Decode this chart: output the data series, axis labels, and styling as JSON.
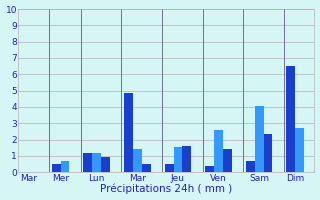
{
  "xlabel": "Précipitations 24h ( mm )",
  "ylim": [
    0,
    10
  ],
  "yticks": [
    0,
    1,
    2,
    3,
    4,
    5,
    6,
    7,
    8,
    9,
    10
  ],
  "background_color": "#d6f5f5",
  "grid_color": "#b8b0b0",
  "bar_color_dark": "#1a3fcc",
  "bar_color_light": "#3399ff",
  "day_label_color": "#2222bb",
  "xlabel_color": "#2222bb",
  "bar_groups": [
    {
      "day": "Mar",
      "bars": [
        0.0,
        0.0
      ]
    },
    {
      "day": "Mer",
      "bars": [
        0.5,
        0.7
      ]
    },
    {
      "day": "Lun",
      "bars": [
        1.2,
        1.2,
        0.9
      ]
    },
    {
      "day": "Mar",
      "bars": [
        4.85,
        1.4,
        0.5
      ]
    },
    {
      "day": "Jeu",
      "bars": [
        0.5,
        1.55,
        1.6
      ]
    },
    {
      "day": "Ven",
      "bars": [
        0.4,
        2.6,
        1.4
      ]
    },
    {
      "day": "Sam",
      "bars": [
        0.7,
        4.05,
        2.35
      ]
    },
    {
      "day": "Dim",
      "bars": [
        6.5,
        2.7
      ]
    }
  ],
  "separator_color": "#707090"
}
